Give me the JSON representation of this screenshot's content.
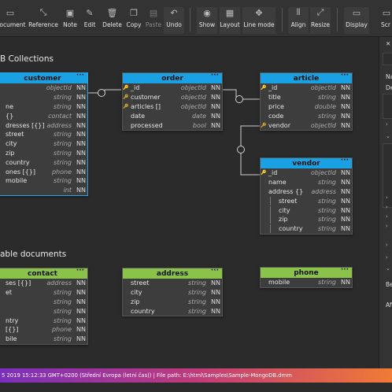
{
  "toolbar": {
    "buttons": [
      {
        "label": "Document",
        "icon": "document-icon"
      },
      {
        "label": "Reference",
        "icon": "reference-icon"
      },
      {
        "label": "Note",
        "icon": "note-icon"
      },
      {
        "label": "Edit",
        "icon": "edit-icon"
      },
      {
        "label": "Delete",
        "icon": "trash-icon"
      },
      {
        "label": "Copy",
        "icon": "copy-icon"
      },
      {
        "label": "Paste",
        "icon": "paste-icon"
      },
      {
        "label": "Undo",
        "icon": "undo-icon"
      },
      {
        "label": "Show",
        "icon": "eye-icon"
      },
      {
        "label": "Layout",
        "icon": "layout-icon"
      },
      {
        "label": "Line mode",
        "icon": "line-mode-icon"
      },
      {
        "label": "Align",
        "icon": "align-icon"
      },
      {
        "label": "Resize",
        "icon": "resize-icon"
      },
      {
        "label": "Display",
        "icon": "display-icon"
      },
      {
        "label": "Scr",
        "icon": "screen-icon"
      }
    ]
  },
  "sections": {
    "collections": "B Collections",
    "embeddable": "able documents"
  },
  "entities": {
    "customer": {
      "title": "customer",
      "rows": [
        {
          "name": "",
          "type": "objectId",
          "nn": "NN"
        },
        {
          "name": "",
          "type": "string",
          "nn": "NN"
        },
        {
          "name": "ne",
          "type": "string",
          "nn": "NN"
        },
        {
          "name": "{}",
          "type": "contact",
          "nn": "NN"
        },
        {
          "name": "dresses [{}]",
          "type": "address",
          "nn": "NN"
        },
        {
          "name": "street",
          "type": "string",
          "nn": "NN"
        },
        {
          "name": "city",
          "type": "string",
          "nn": "NN"
        },
        {
          "name": "zip",
          "type": "string",
          "nn": "NN"
        },
        {
          "name": "country",
          "type": "string",
          "nn": "NN"
        },
        {
          "name": "ones [{}]",
          "type": "phone",
          "nn": "NN"
        },
        {
          "name": "mobile",
          "type": "string",
          "nn": "NN"
        },
        {
          "name": "",
          "type": "int",
          "nn": "NN"
        }
      ]
    },
    "order": {
      "title": "order",
      "rows": [
        {
          "name": "_id",
          "type": "objectId",
          "nn": "NN",
          "key": "pk"
        },
        {
          "name": "customer",
          "type": "objectId",
          "nn": "NN",
          "key": "fk"
        },
        {
          "name": "articles []",
          "type": "objectId",
          "nn": "NN",
          "key": "fk"
        },
        {
          "name": "date",
          "type": "date",
          "nn": "NN"
        },
        {
          "name": "processed",
          "type": "bool",
          "nn": "NN"
        }
      ]
    },
    "article": {
      "title": "article",
      "rows": [
        {
          "name": "_id",
          "type": "objectId",
          "nn": "NN",
          "key": "pk"
        },
        {
          "name": "title",
          "type": "string",
          "nn": "NN"
        },
        {
          "name": "price",
          "type": "double",
          "nn": "NN"
        },
        {
          "name": "code",
          "type": "string",
          "nn": "NN"
        },
        {
          "name": "vendor",
          "type": "objectId",
          "nn": "NN",
          "key": "fk"
        }
      ]
    },
    "vendor": {
      "title": "vendor",
      "rows": [
        {
          "name": "_id",
          "type": "objectId",
          "nn": "NN",
          "key": "pk"
        },
        {
          "name": "name",
          "type": "string",
          "nn": "NN"
        },
        {
          "name": "address {}",
          "type": "address",
          "nn": "NN"
        },
        {
          "name": "street",
          "type": "string",
          "nn": "NN",
          "indent": true
        },
        {
          "name": "city",
          "type": "string",
          "nn": "NN",
          "indent": true
        },
        {
          "name": "zip",
          "type": "string",
          "nn": "NN",
          "indent": true
        },
        {
          "name": "country",
          "type": "string",
          "nn": "NN",
          "indent": true
        }
      ]
    },
    "contact": {
      "title": "contact",
      "rows": [
        {
          "name": "ses [{}]",
          "type": "address",
          "nn": "NN"
        },
        {
          "name": "et",
          "type": "string",
          "nn": "NN"
        },
        {
          "name": "",
          "type": "string",
          "nn": "NN"
        },
        {
          "name": "",
          "type": "string",
          "nn": "NN"
        },
        {
          "name": "ntry",
          "type": "string",
          "nn": "NN"
        },
        {
          "name": "[{}]",
          "type": "phone",
          "nn": "NN"
        },
        {
          "name": "bile",
          "type": "string",
          "nn": "NN"
        }
      ]
    },
    "address": {
      "title": "address",
      "rows": [
        {
          "name": "street",
          "type": "string",
          "nn": "NN"
        },
        {
          "name": "city",
          "type": "string",
          "nn": "NN"
        },
        {
          "name": "zip",
          "type": "string",
          "nn": "NN"
        },
        {
          "name": "country",
          "type": "string",
          "nn": "NN"
        }
      ]
    },
    "phone": {
      "title": "phone",
      "rows": [
        {
          "name": "mobile",
          "type": "string",
          "nn": "NN"
        }
      ]
    }
  },
  "right_panel": {
    "labels": [
      "Na",
      "De",
      "Be",
      "Aft"
    ]
  },
  "status": {
    "text": "5 2019 15:12:33 GMT+0200 (Střední Evropa (letní čas))  | File path: E:\\html\\Samples\\Sample-MongoDB.dmm"
  },
  "colors": {
    "collection_header": "#19a1e3",
    "embedded_header": "#8bc34a",
    "selection_border": "#2aa5e8"
  }
}
